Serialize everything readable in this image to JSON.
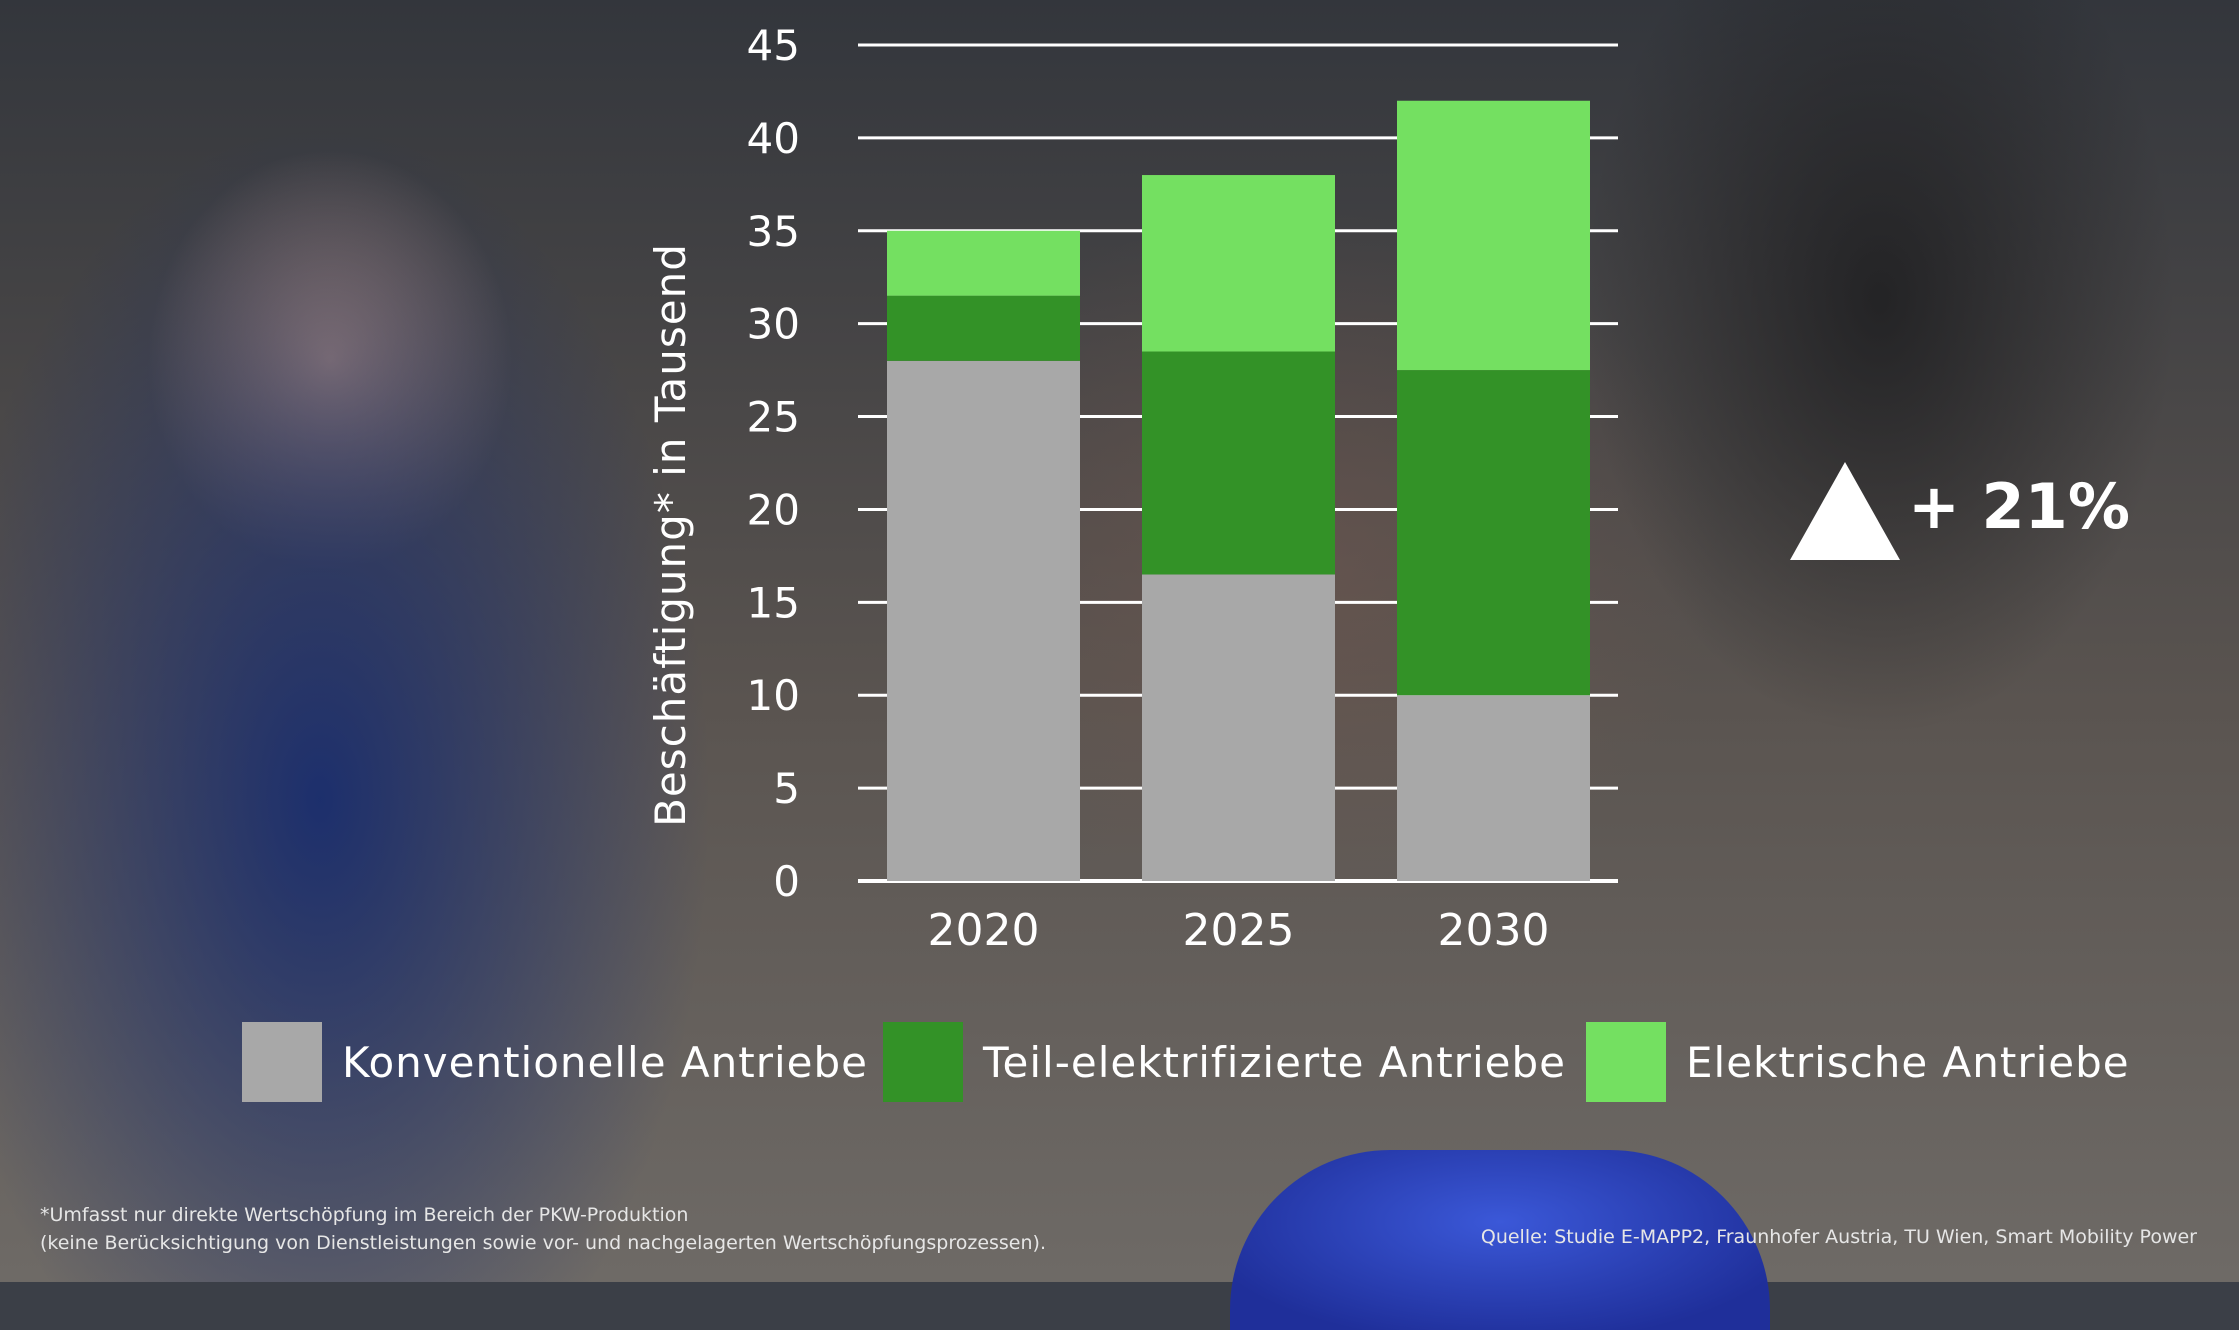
{
  "chart_data": {
    "type": "bar",
    "stacked": true,
    "categories": [
      "2020",
      "2025",
      "2030"
    ],
    "series": [
      {
        "name": "Konventionelle Antriebe",
        "values": [
          28,
          16.5,
          10
        ],
        "color": "#a8a8a8"
      },
      {
        "name": "Teil-elektrifizierte Antriebe",
        "values": [
          3.5,
          12,
          17.5
        ],
        "color": "#339227"
      },
      {
        "name": "Elektrische Antriebe",
        "values": [
          3.5,
          9.5,
          14.5
        ],
        "color": "#74e061"
      }
    ],
    "ylabel": "Beschäftigung* in Tausend",
    "yticks": [
      0,
      5,
      10,
      15,
      20,
      25,
      30,
      35,
      40,
      45
    ],
    "ylim": [
      0,
      45
    ],
    "grid": true,
    "legend": "bottom"
  },
  "annotation": {
    "label": "+ 21%",
    "icon": "up-triangle-icon"
  },
  "footnote": {
    "line1": "*Umfasst nur direkte Wertschöpfung im Bereich der PKW-Produktion",
    "line2": "(keine Berücksichtigung von Dienstleistungen sowie vor- und nachgelagerten Wertschöpfungsprozessen)."
  },
  "source": "Quelle: Studie E-MAPP2, Fraunhofer Austria, TU Wien, Smart Mobility Power"
}
